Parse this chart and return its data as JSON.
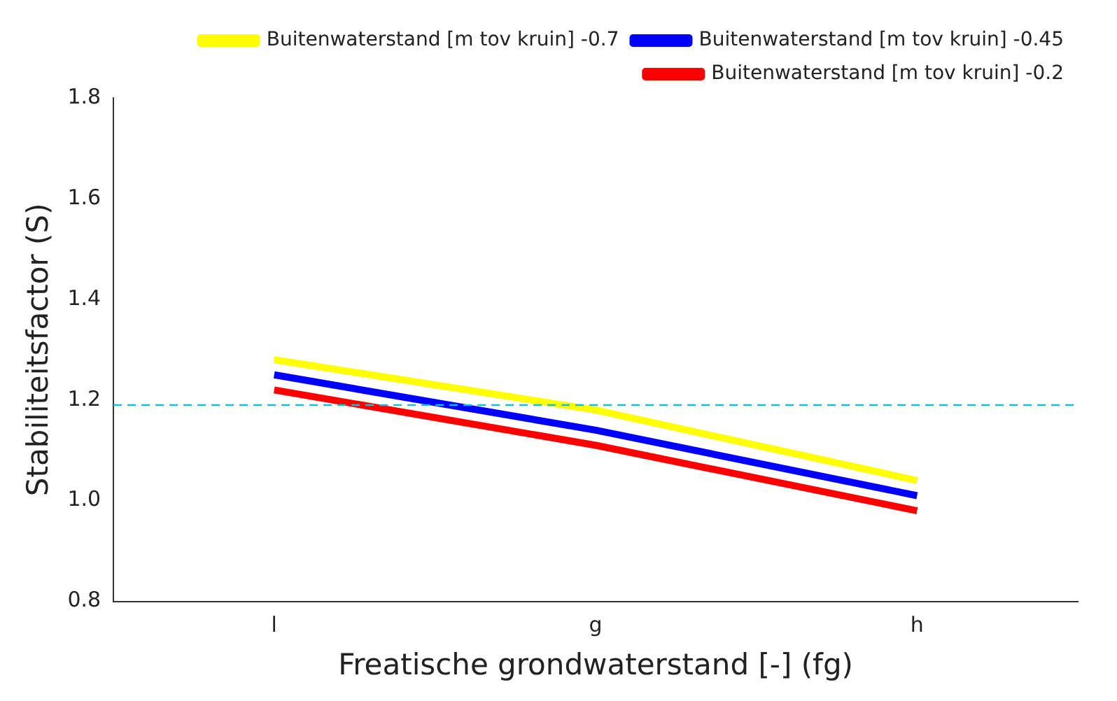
{
  "chart_data": {
    "type": "line",
    "xlabel": "Freatische grondwaterstand [-] (fg)",
    "ylabel": "Stabiliteitsfactor (S)",
    "categories": [
      "l",
      "g",
      "h"
    ],
    "series": [
      {
        "name": "Buitenwaterstand [m tov kruin] -0.7",
        "color": "#ffff00",
        "values": [
          1.28,
          1.18,
          1.04
        ]
      },
      {
        "name": "Buitenwaterstand [m tov kruin] -0.45",
        "color": "#0000ff",
        "values": [
          1.25,
          1.14,
          1.01
        ]
      },
      {
        "name": "Buitenwaterstand [m tov kruin] -0.2",
        "color": "#ff0000",
        "values": [
          1.22,
          1.11,
          0.98
        ]
      }
    ],
    "ylim": [
      0.8,
      1.8
    ],
    "yticks": [
      0.8,
      {
        "value": 1,
        "label": "1.0"
      },
      1.2,
      1.4,
      1.6,
      1.8
    ],
    "ref_lines": [
      {
        "axis": "y",
        "value": 1.19,
        "color": "#17becf",
        "line_style": "dashed"
      }
    ],
    "grid": false,
    "legend": "top right",
    "marker": "none",
    "line_style": "solid"
  }
}
